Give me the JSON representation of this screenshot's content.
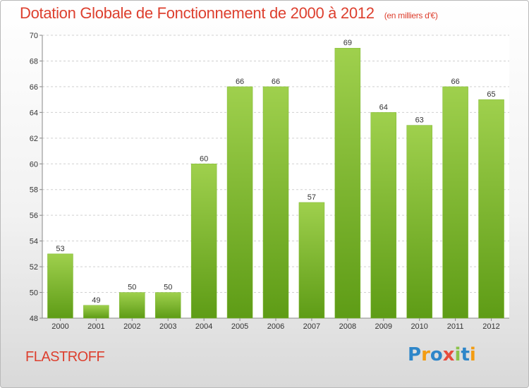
{
  "header": {
    "title": "Dotation Globale de Fonctionnement de 2000 à 2012",
    "unit": "(en milliers d'€)"
  },
  "footer": {
    "commune": "FLASTROFF",
    "logo": {
      "letters": [
        "P",
        "r",
        "o",
        "x",
        "i",
        "t",
        "i"
      ],
      "colors": [
        "#2e86c9",
        "#f39c12",
        "#2e86c9",
        "#e74c3c",
        "#8bc34a",
        "#2e86c9",
        "#f39c12"
      ]
    }
  },
  "colors": {
    "bar_top": "#9fd04d",
    "bar_bottom": "#5e9c16",
    "grid": "#d0d0d0",
    "title": "#dd3f2e"
  },
  "chart_data": {
    "type": "bar",
    "title": "Dotation Globale de Fonctionnement de 2000 à 2012",
    "subtitle": "(en milliers d'€)",
    "xlabel": "",
    "ylabel": "",
    "categories": [
      "2000",
      "2001",
      "2002",
      "2003",
      "2004",
      "2005",
      "2006",
      "2007",
      "2008",
      "2009",
      "2010",
      "2011",
      "2012"
    ],
    "values": [
      53,
      49,
      50,
      50,
      60,
      66,
      66,
      57,
      69,
      64,
      63,
      66,
      65
    ],
    "ylim": [
      48,
      70
    ],
    "yticks": [
      48,
      50,
      52,
      54,
      56,
      58,
      60,
      62,
      64,
      66,
      68,
      70
    ],
    "grid": true,
    "legend": "none"
  }
}
